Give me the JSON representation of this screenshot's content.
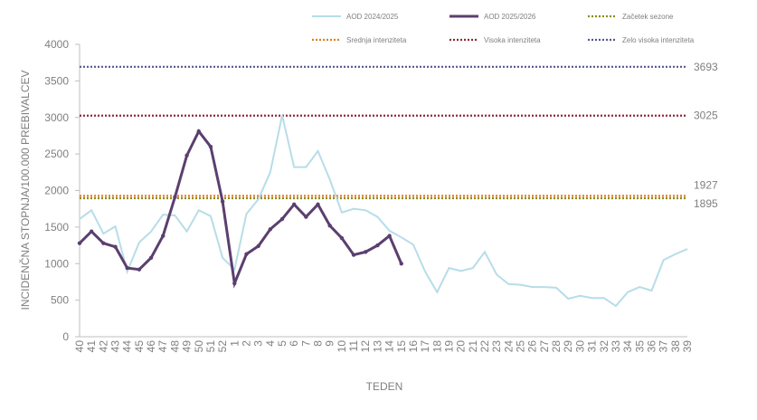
{
  "chart_data": {
    "type": "line",
    "y_label": "INCIDENČNA  STOPNJA/100.000  PREBIVALCEV",
    "x_label": "TEDEN",
    "categories": [
      "40",
      "41",
      "42",
      "43",
      "44",
      "45",
      "46",
      "47",
      "48",
      "49",
      "50",
      "51",
      "52",
      "1",
      "2",
      "3",
      "4",
      "5",
      "6",
      "7",
      "8",
      "9",
      "10",
      "11",
      "12",
      "13",
      "14",
      "15",
      "16",
      "17",
      "18",
      "19",
      "20",
      "21",
      "22",
      "23",
      "24",
      "25",
      "26",
      "27",
      "28",
      "29",
      "30",
      "31",
      "32",
      "33",
      "34",
      "35",
      "36",
      "37",
      "38",
      "39"
    ],
    "series": [
      {
        "name": "AOD 2024/2025",
        "color": "#b7dde8",
        "values": [
          1610,
          1730,
          1410,
          1510,
          890,
          1290,
          1440,
          1670,
          1660,
          1440,
          1730,
          1650,
          1080,
          920,
          1680,
          1880,
          2250,
          3030,
          2320,
          2320,
          2540,
          2150,
          1700,
          1750,
          1730,
          1640,
          1450,
          1360,
          1260,
          890,
          610,
          940,
          900,
          940,
          1160,
          850,
          720,
          710,
          680,
          680,
          670,
          520,
          560,
          530,
          530,
          420,
          610,
          680,
          630,
          1050,
          1130,
          1200
        ]
      },
      {
        "name": "AOD 2025/2026",
        "color": "#5b3f6e",
        "values": [
          1280,
          1440,
          1280,
          1230,
          940,
          920,
          1080,
          1380,
          1910,
          2480,
          2810,
          2600,
          1850,
          730,
          1130,
          1240,
          1470,
          1610,
          1810,
          1640,
          1810,
          1520,
          1350,
          1120,
          1160,
          1250,
          1380,
          1000,
          null,
          null,
          null,
          null,
          null,
          null,
          null,
          null,
          null,
          null,
          null,
          null,
          null,
          null,
          null,
          null,
          null,
          null,
          null,
          null,
          null,
          null,
          null,
          null
        ]
      }
    ],
    "thresholds": [
      {
        "name": "Začetek sezone",
        "value": 1895,
        "color": "#8c8c1e"
      },
      {
        "name": "Srednja intenziteta",
        "value": 1927,
        "color": "#e0801e"
      },
      {
        "name": "Visoka intenziteta",
        "value": 3025,
        "color": "#8b2a3c"
      },
      {
        "name": "Zelo visoka intenziteta",
        "value": 3693,
        "color": "#55558f"
      }
    ],
    "ylim": [
      0,
      4000
    ],
    "yticks": [
      0,
      500,
      1000,
      1500,
      2000,
      2500,
      3000,
      3500,
      4000
    ]
  }
}
